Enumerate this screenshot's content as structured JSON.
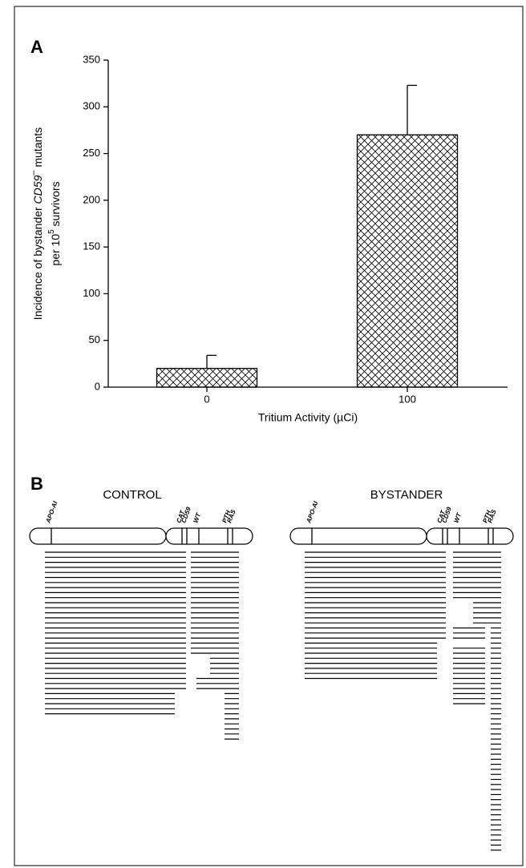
{
  "panel_a_label": "A",
  "chart_data": {
    "type": "bar",
    "ylabel": {
      "line1": [
        "Incidence of bystander ",
        "CD59",
        "–",
        " mutants"
      ],
      "line2": [
        "per 10",
        "5",
        " survivors"
      ]
    },
    "xlabel": "Tritium Activity (µCi)",
    "categories": [
      "0",
      "100"
    ],
    "values": [
      20,
      270
    ],
    "errors": [
      14,
      53
    ],
    "ylim": [
      0,
      350
    ],
    "yticks": [
      0,
      50,
      100,
      150,
      200,
      250,
      300,
      350
    ],
    "grid": false
  },
  "panel_b": {
    "label": "B",
    "groups": [
      {
        "title": "CONTROL"
      },
      {
        "title": "BYSTANDER"
      }
    ],
    "markers": [
      "APO-AI",
      "CAT",
      "CD59",
      "WT",
      "PTH",
      "RAS"
    ]
  }
}
